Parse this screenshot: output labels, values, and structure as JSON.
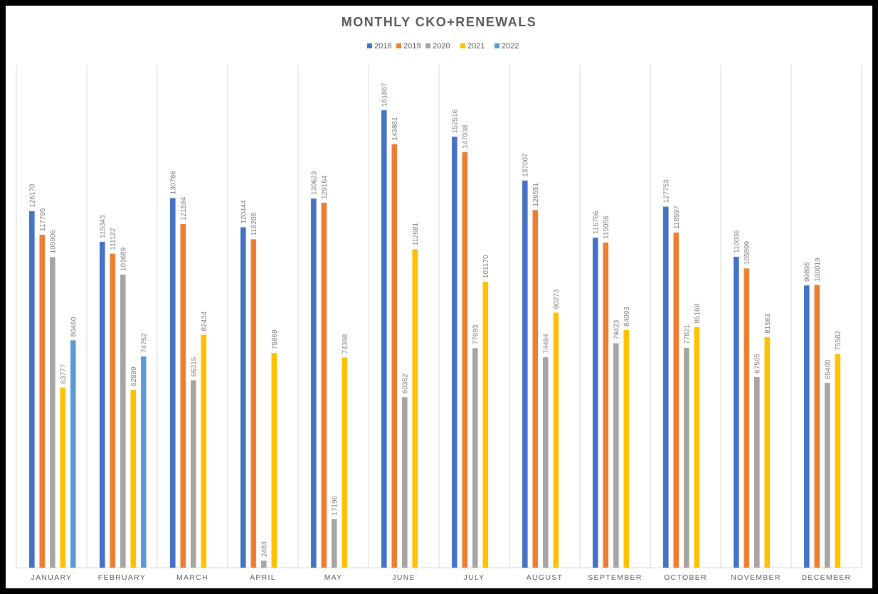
{
  "chart_data": {
    "type": "bar",
    "title": "MONTHLY CKO+RENEWALS",
    "xlabel": "",
    "ylabel": "",
    "ylim": [
      0,
      170000
    ],
    "grid": "vertical category separators",
    "legend_position": "top",
    "categories": [
      "JANUARY",
      "FEBRUARY",
      "MARCH",
      "APRIL",
      "MAY",
      "JUNE",
      "JULY",
      "AUGUST",
      "SEPTEMBER",
      "OCTOBER",
      "NOVEMBER",
      "DECEMBER"
    ],
    "series": [
      {
        "name": "2018",
        "color": "#4472c4",
        "values": [
          126170,
          115343,
          130786,
          120444,
          130623,
          161867,
          152516,
          137007,
          116766,
          127753,
          110036,
          99895
        ]
      },
      {
        "name": "2019",
        "color": "#ed7d31",
        "values": [
          117795,
          111122,
          121594,
          116208,
          129164,
          149861,
          147038,
          126551,
          115056,
          118597,
          105899,
          100019
        ]
      },
      {
        "name": "2020",
        "color": "#a5a5a5",
        "values": [
          109906,
          103689,
          66315,
          2483,
          17196,
          60352,
          77693,
          74484,
          79423,
          77821,
          67505,
          65400
        ]
      },
      {
        "name": "2021",
        "color": "#ffc000",
        "values": [
          63777,
          62889,
          82434,
          75969,
          74398,
          112681,
          101170,
          90273,
          84093,
          85168,
          81583,
          75582
        ]
      },
      {
        "name": "2022",
        "color": "#5b9bd5",
        "values": [
          80460,
          74752,
          null,
          null,
          null,
          null,
          null,
          null,
          null,
          null,
          null,
          null
        ]
      }
    ]
  }
}
